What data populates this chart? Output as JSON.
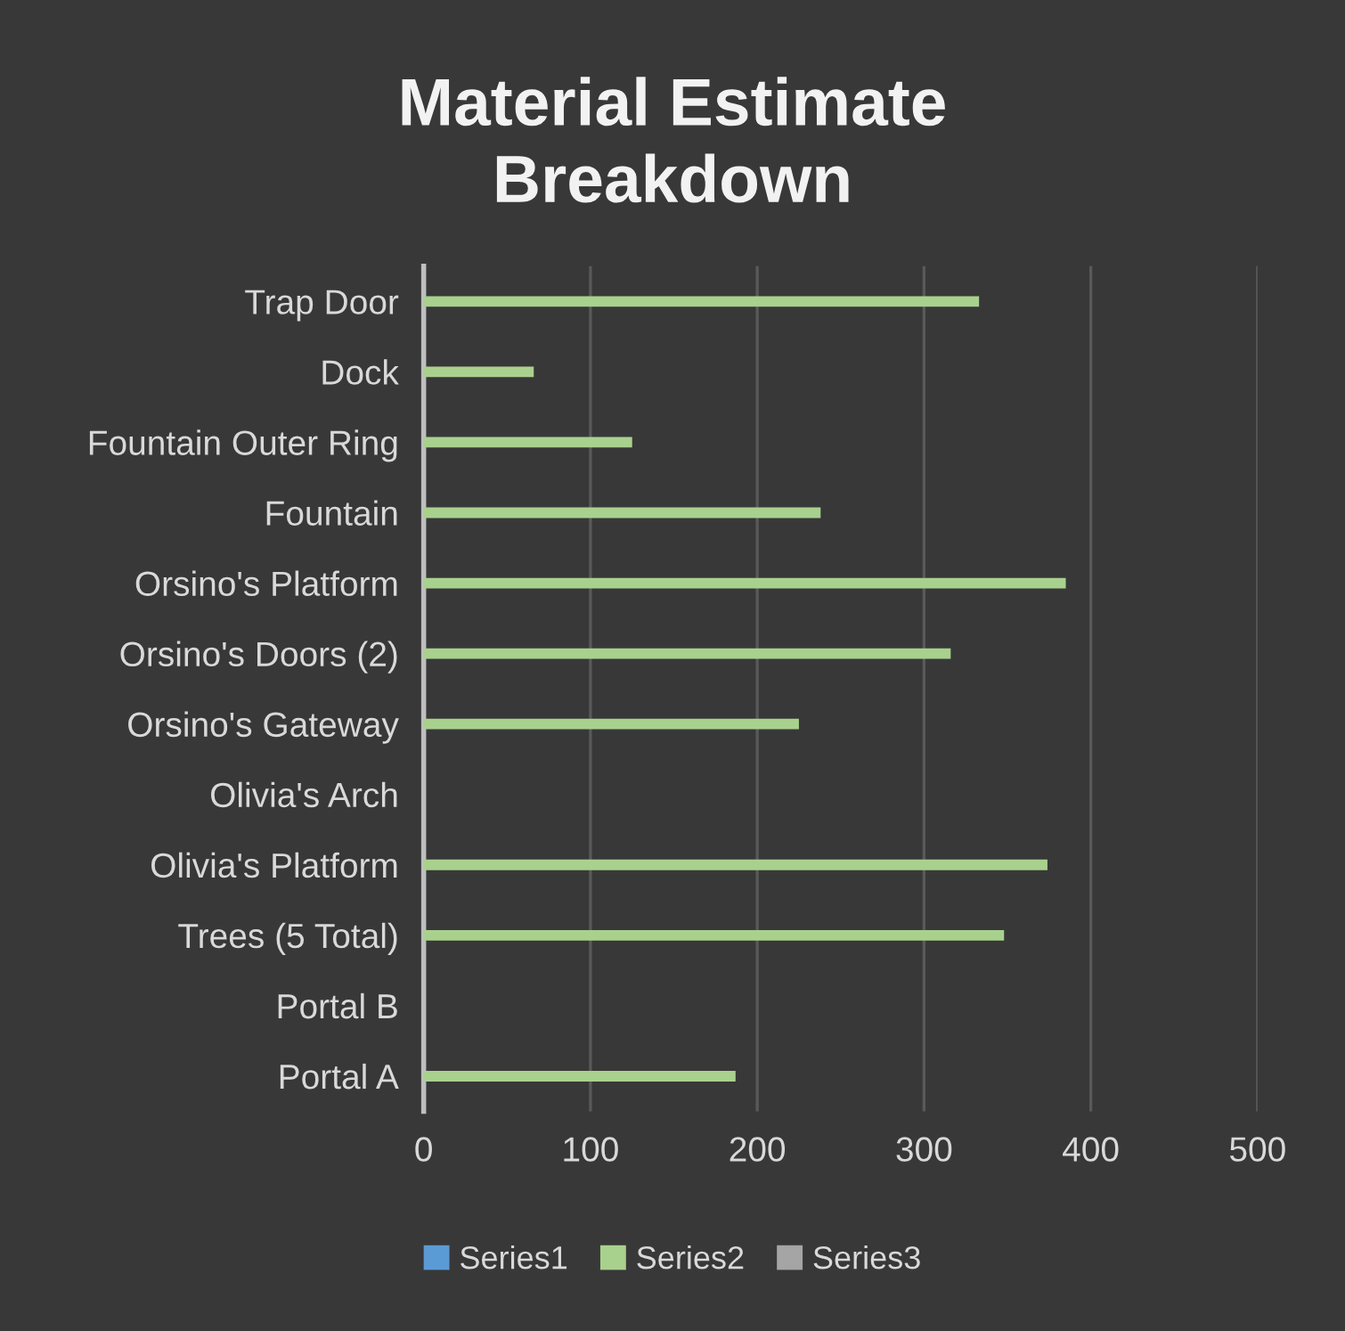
{
  "chart_data": {
    "type": "bar",
    "orientation": "horizontal",
    "title": "Material Estimate\nBreakdown",
    "categories": [
      "Trap Door",
      "Dock",
      "Fountain Outer Ring",
      "Fountain",
      "Orsino's Platform",
      "Orsino's Doors (2)",
      "Orsino's Gateway",
      "Olivia's Arch",
      "Olivia's Platform",
      "Trees (5 Total)",
      "Portal B",
      "Portal A"
    ],
    "series": [
      {
        "name": "Series1",
        "color": "#5b9bd5",
        "values": [
          null,
          null,
          null,
          null,
          null,
          null,
          null,
          null,
          null,
          null,
          null,
          null
        ]
      },
      {
        "name": "Series2",
        "color": "#a9d18e",
        "values": [
          333,
          66,
          125,
          238,
          385,
          316,
          225,
          null,
          374,
          348,
          null,
          187
        ]
      },
      {
        "name": "Series3",
        "color": "#a5a5a5",
        "values": [
          null,
          null,
          null,
          null,
          null,
          null,
          null,
          null,
          null,
          null,
          null,
          null
        ]
      }
    ],
    "xlim": [
      0,
      500
    ],
    "xticks": [
      0,
      100,
      200,
      300,
      400,
      500
    ],
    "grid": "x",
    "legend": "bottom"
  }
}
